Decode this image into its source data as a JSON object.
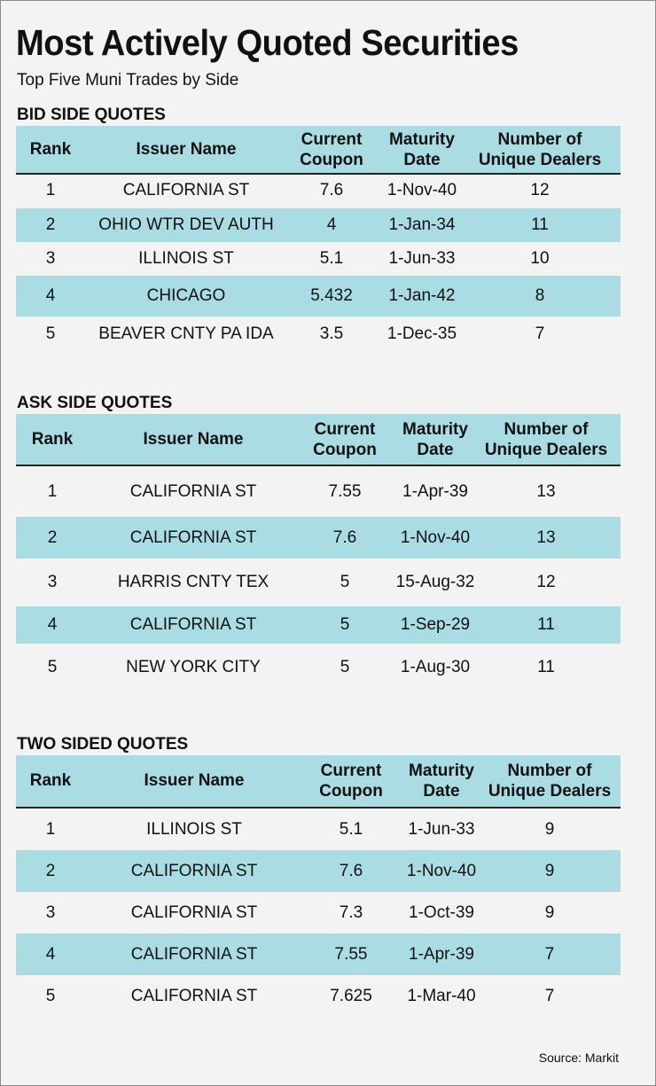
{
  "title": "Most Actively Quoted Securities",
  "subtitle": "Top Five Muni Trades by Side",
  "source": "Source: Markit",
  "colors": {
    "accent": "#a9dce3",
    "background": "#f3f3f4"
  },
  "chart_data": {
    "type": "table",
    "columns": {
      "rank": "Rank",
      "issuer": "Issuer Name",
      "coupon_1": "Current",
      "coupon_2": "Coupon",
      "maturity_1": "Maturity",
      "maturity_2": "Date",
      "dealers_1": "Number of",
      "dealers_2": "Unique Dealers"
    },
    "sections": [
      {
        "label": "BID SIDE QUOTES",
        "rows": [
          {
            "rank": "1",
            "issuer": "CALIFORNIA ST",
            "coupon": "7.6",
            "maturity": "1-Nov-40",
            "dealers": "12"
          },
          {
            "rank": "2",
            "issuer": "OHIO WTR DEV AUTH",
            "coupon": "4",
            "maturity": "1-Jan-34",
            "dealers": "11"
          },
          {
            "rank": "3",
            "issuer": "ILLINOIS ST",
            "coupon": "5.1",
            "maturity": "1-Jun-33",
            "dealers": "10"
          },
          {
            "rank": "4",
            "issuer": "CHICAGO",
            "coupon": "5.432",
            "maturity": "1-Jan-42",
            "dealers": "8"
          },
          {
            "rank": "5",
            "issuer": "BEAVER CNTY PA IDA",
            "coupon": "3.5",
            "maturity": "1-Dec-35",
            "dealers": "7"
          }
        ]
      },
      {
        "label": "ASK SIDE QUOTES",
        "rows": [
          {
            "rank": "1",
            "issuer": "CALIFORNIA ST",
            "coupon": "7.55",
            "maturity": "1-Apr-39",
            "dealers": "13"
          },
          {
            "rank": "2",
            "issuer": "CALIFORNIA ST",
            "coupon": "7.6",
            "maturity": "1-Nov-40",
            "dealers": "13"
          },
          {
            "rank": "3",
            "issuer": "HARRIS CNTY TEX",
            "coupon": "5",
            "maturity": "15-Aug-32",
            "dealers": "12"
          },
          {
            "rank": "4",
            "issuer": "CALIFORNIA ST",
            "coupon": "5",
            "maturity": "1-Sep-29",
            "dealers": "11"
          },
          {
            "rank": "5",
            "issuer": "NEW YORK CITY",
            "coupon": "5",
            "maturity": "1-Aug-30",
            "dealers": "11"
          }
        ]
      },
      {
        "label": "TWO SIDED QUOTES",
        "rows": [
          {
            "rank": "1",
            "issuer": "ILLINOIS ST",
            "coupon": "5.1",
            "maturity": "1-Jun-33",
            "dealers": "9"
          },
          {
            "rank": "2",
            "issuer": "CALIFORNIA ST",
            "coupon": "7.6",
            "maturity": "1-Nov-40",
            "dealers": "9"
          },
          {
            "rank": "3",
            "issuer": "CALIFORNIA ST",
            "coupon": "7.3",
            "maturity": "1-Oct-39",
            "dealers": "9"
          },
          {
            "rank": "4",
            "issuer": "CALIFORNIA ST",
            "coupon": "7.55",
            "maturity": "1-Apr-39",
            "dealers": "7"
          },
          {
            "rank": "5",
            "issuer": "CALIFORNIA ST",
            "coupon": "7.625",
            "maturity": "1-Mar-40",
            "dealers": "7"
          }
        ]
      }
    ]
  }
}
